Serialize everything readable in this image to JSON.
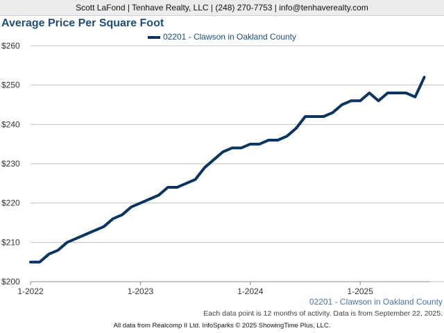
{
  "header": {
    "text": "Scott LaFond | Tenhave Realty, LLC | (248) 270-7753 | info@tenhaverealty.com"
  },
  "chart_data": {
    "type": "line",
    "title": "Average Price Per Square Foot",
    "xlabel": "",
    "ylabel": "",
    "ylim": [
      200,
      260
    ],
    "y_ticks": [
      "$200",
      "$210",
      "$220",
      "$230",
      "$240",
      "$250",
      "$260"
    ],
    "x_ticks": [
      "1-2022",
      "1-2023",
      "1-2024",
      "1-2025"
    ],
    "grid": true,
    "legend_position": "top",
    "series": [
      {
        "name": "02201 - Clawson in Oakland County",
        "color": "#0b3461",
        "x": [
          "1-2022",
          "2-2022",
          "3-2022",
          "4-2022",
          "5-2022",
          "6-2022",
          "7-2022",
          "8-2022",
          "9-2022",
          "10-2022",
          "11-2022",
          "12-2022",
          "1-2023",
          "2-2023",
          "3-2023",
          "4-2023",
          "5-2023",
          "6-2023",
          "7-2023",
          "8-2023",
          "9-2023",
          "10-2023",
          "11-2023",
          "12-2023",
          "1-2024",
          "2-2024",
          "3-2024",
          "4-2024",
          "5-2024",
          "6-2024",
          "7-2024",
          "8-2024",
          "9-2024",
          "10-2024",
          "11-2024",
          "12-2024",
          "1-2025",
          "2-2025",
          "3-2025",
          "4-2025",
          "5-2025",
          "6-2025",
          "7-2025",
          "8-2025"
        ],
        "values": [
          205,
          205,
          207,
          208,
          210,
          211,
          212,
          213,
          214,
          216,
          217,
          219,
          220,
          221,
          222,
          224,
          224,
          225,
          226,
          229,
          231,
          233,
          234,
          234,
          235,
          235,
          236,
          236,
          237,
          239,
          242,
          242,
          242,
          243,
          245,
          246,
          246,
          248,
          246,
          248,
          248,
          248,
          247,
          252
        ]
      }
    ]
  },
  "source_label": "02201 - Clawson in Oakland County",
  "note": "Each data point is 12 months of activity. Data is from September 22, 2025.",
  "footer": "All data from Realcomp II Ltd. InfoSparks © 2025 ShowingTime Plus, LLC."
}
